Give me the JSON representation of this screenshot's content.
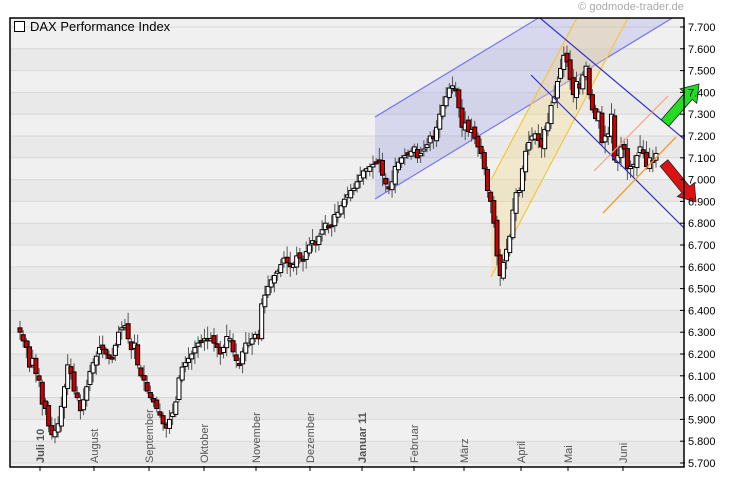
{
  "credit": "© godmode-trader.de",
  "legend": {
    "label": "DAX Performance Index"
  },
  "colors": {
    "background_light": "#f0f0f0",
    "background_band": "#e9e9e9",
    "gridline": "#d8d8d8",
    "candle_up_fill": "#ffffff",
    "candle_down_fill": "#cc0000",
    "candle_outline": "#000000",
    "wick": "#555555",
    "channel_blue_fill": "rgba(150,150,235,0.28)",
    "channel_blue_line": "#7777ee",
    "channel_yellow_fill": "rgba(245,220,140,0.35)",
    "channel_yellow_line": "#f5c63a",
    "downtrend_line": "#3333cc",
    "orange_line": "#f39a2a",
    "salmon_line": "#f5a07a",
    "arrow_up": "#22dd22",
    "arrow_down": "#dd1111"
  },
  "chart_data": {
    "type": "candlestick",
    "title": "DAX Performance Index",
    "xlabel": "",
    "ylabel": "",
    "ylim": [
      5700,
      7700
    ],
    "y_ticks": [
      "5.700",
      "5.800",
      "5.900",
      "6.000",
      "6.100",
      "6.200",
      "6.300",
      "6.400",
      "6.500",
      "6.600",
      "6.700",
      "6.800",
      "6.900",
      "7.000",
      "7.100",
      "7.200",
      "7.300",
      "7.400",
      "7.500",
      "7.600",
      "7.700"
    ],
    "y_tick_values": [
      5700,
      5800,
      5900,
      6000,
      6100,
      6200,
      6300,
      6400,
      6500,
      6600,
      6700,
      6800,
      6900,
      7000,
      7100,
      7200,
      7300,
      7400,
      7500,
      7600,
      7700
    ],
    "x_ticks": [
      {
        "label": "Juli 10",
        "x": 40,
        "bold": true
      },
      {
        "label": "August",
        "x": 94,
        "bold": false
      },
      {
        "label": "September",
        "x": 149,
        "bold": false
      },
      {
        "label": "Oktober",
        "x": 204,
        "bold": false
      },
      {
        "label": "November",
        "x": 256,
        "bold": false
      },
      {
        "label": "Dezember",
        "x": 310,
        "bold": false
      },
      {
        "label": "Januar 11",
        "x": 362,
        "bold": true
      },
      {
        "label": "Februar",
        "x": 414,
        "bold": false
      },
      {
        "label": "März",
        "x": 464,
        "bold": false
      },
      {
        "label": "April",
        "x": 521,
        "bold": false
      },
      {
        "label": "Mai",
        "x": 568,
        "bold": false
      },
      {
        "label": "Juni",
        "x": 623,
        "bold": false
      }
    ],
    "grid": true,
    "legend_position": "top-left",
    "series": [
      {
        "name": "DAX Performance Index (daily OHLC, approx.)",
        "closes": [
          6300,
          6260,
          6230,
          6140,
          6180,
          6110,
          6080,
          5970,
          5950,
          5870,
          5830,
          5850,
          5880,
          5960,
          6050,
          6150,
          6110,
          6030,
          6000,
          5940,
          5990,
          6050,
          6120,
          6160,
          6190,
          6230,
          6220,
          6200,
          6180,
          6180,
          6240,
          6300,
          6320,
          6330,
          6270,
          6220,
          6250,
          6150,
          6100,
          6080,
          6030,
          6000,
          5980,
          5950,
          5920,
          5880,
          5860,
          5900,
          5930,
          5980,
          6090,
          6140,
          6160,
          6180,
          6200,
          6230,
          6250,
          6260,
          6270,
          6260,
          6270,
          6250,
          6230,
          6200,
          6230,
          6280,
          6270,
          6210,
          6170,
          6150,
          6210,
          6250,
          6250,
          6270,
          6290,
          6270,
          6430,
          6470,
          6510,
          6540,
          6560,
          6580,
          6610,
          6640,
          6620,
          6600,
          6610,
          6650,
          6640,
          6630,
          6670,
          6700,
          6720,
          6700,
          6740,
          6770,
          6800,
          6780,
          6790,
          6840,
          6850,
          6880,
          6910,
          6930,
          6950,
          6960,
          6990,
          7020,
          7040,
          7050,
          7060,
          7070,
          7080,
          7080,
          7020,
          6980,
          6960,
          6990,
          7060,
          7080,
          7100,
          7110,
          7120,
          7130,
          7150,
          7100,
          7120,
          7140,
          7160,
          7200,
          7190,
          7240,
          7300,
          7340,
          7380,
          7420,
          7430,
          7410,
          7330,
          7240,
          7260,
          7220,
          7230,
          7190,
          7150,
          7120,
          7050,
          6950,
          6900,
          6800,
          6650,
          6560,
          6620,
          6680,
          6740,
          6860,
          6940,
          6950,
          7050,
          7130,
          7170,
          7200,
          7210,
          7180,
          7150,
          7230,
          7260,
          7340,
          7380,
          7450,
          7510,
          7570,
          7540,
          7460,
          7390,
          7450,
          7420,
          7480,
          7520,
          7390,
          7320,
          7280,
          7310,
          7170,
          7200,
          7210,
          7300,
          7090,
          7110,
          7150,
          7140,
          7050,
          7060,
          7070,
          7110,
          7150,
          7120,
          7060,
          7100,
          7080,
          7120
        ]
      }
    ],
    "annotations": [
      {
        "type": "channel",
        "color": "blue",
        "from_x": 375,
        "note": "ascending channel Dec–Apr"
      },
      {
        "type": "channel",
        "color": "yellow",
        "from_x": 491,
        "note": "ascending channel from March low"
      },
      {
        "type": "trendlines",
        "color": "dark-blue",
        "note": "descending channel from May high"
      },
      {
        "type": "trendlines",
        "color": "orange",
        "note": "short-term ascending channel June"
      },
      {
        "type": "arrow",
        "direction": "up",
        "color": "green"
      },
      {
        "type": "arrow",
        "direction": "down",
        "color": "red"
      }
    ]
  }
}
